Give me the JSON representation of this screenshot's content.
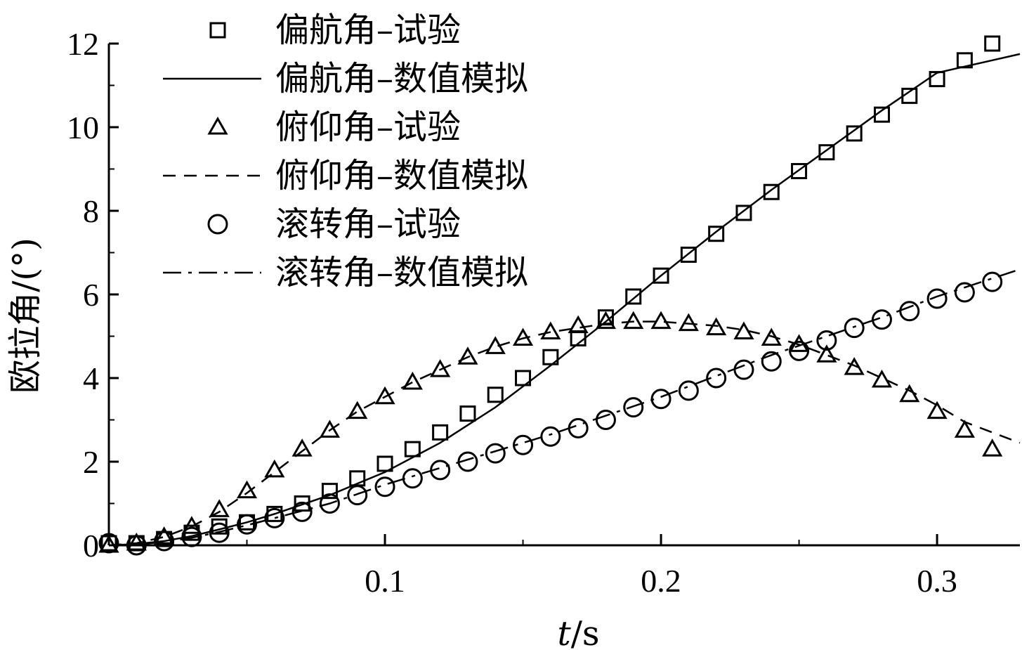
{
  "chart_data": {
    "type": "line",
    "title": "",
    "xlabel_var": "t",
    "xlabel_unit": "/s",
    "ylabel": "欧拉角/(°)",
    "xlim": [
      0,
      0.33
    ],
    "ylim": [
      0,
      12
    ],
    "x_ticks": [
      0.1,
      0.2,
      0.3
    ],
    "x_tick_labels": [
      "0.1",
      "0.2",
      "0.3"
    ],
    "y_ticks": [
      0,
      2,
      4,
      6,
      8,
      10,
      12
    ],
    "y_tick_labels": [
      "0",
      "2",
      "4",
      "6",
      "8",
      "10",
      "12"
    ],
    "grid": false,
    "legend_position": "top-left",
    "legend": [
      {
        "label": "偏航角–试验",
        "marker": "square",
        "line": "none"
      },
      {
        "label": "偏航角–数值模拟",
        "marker": "none",
        "line": "solid"
      },
      {
        "label": "俯仰角–试验",
        "marker": "triangle",
        "line": "none"
      },
      {
        "label": "俯仰角–数值模拟",
        "marker": "none",
        "line": "dashed"
      },
      {
        "label": "滚转角–试验",
        "marker": "circle",
        "line": "none"
      },
      {
        "label": "滚转角–数值模拟",
        "marker": "none",
        "line": "dashdot"
      }
    ],
    "series": [
      {
        "name": "偏航角–试验",
        "style": "markers",
        "marker": "square",
        "x": [
          0.0,
          0.01,
          0.02,
          0.03,
          0.04,
          0.05,
          0.06,
          0.07,
          0.08,
          0.09,
          0.1,
          0.11,
          0.12,
          0.13,
          0.14,
          0.15,
          0.16,
          0.17,
          0.18,
          0.19,
          0.2,
          0.21,
          0.22,
          0.23,
          0.24,
          0.25,
          0.26,
          0.27,
          0.28,
          0.29,
          0.3,
          0.31,
          0.32
        ],
        "y": [
          0.05,
          0.05,
          0.15,
          0.3,
          0.45,
          0.55,
          0.75,
          1.0,
          1.3,
          1.6,
          1.95,
          2.3,
          2.7,
          3.15,
          3.6,
          4.0,
          4.5,
          4.95,
          5.45,
          5.95,
          6.45,
          6.95,
          7.45,
          7.95,
          8.45,
          8.95,
          9.4,
          9.85,
          10.3,
          10.75,
          11.15,
          11.6,
          12.0
        ]
      },
      {
        "name": "偏航角–数值模拟",
        "style": "solid",
        "x": [
          0.0,
          0.01,
          0.02,
          0.03,
          0.04,
          0.05,
          0.06,
          0.08,
          0.1,
          0.12,
          0.14,
          0.16,
          0.18,
          0.2,
          0.22,
          0.24,
          0.26,
          0.28,
          0.3,
          0.33
        ],
        "y": [
          0.0,
          0.03,
          0.1,
          0.22,
          0.38,
          0.55,
          0.75,
          1.2,
          1.75,
          2.45,
          3.3,
          4.3,
          5.35,
          6.45,
          7.5,
          8.5,
          9.45,
          10.4,
          11.3,
          11.75
        ]
      },
      {
        "name": "俯仰角–试验",
        "style": "markers",
        "marker": "triangle",
        "x": [
          0.0,
          0.01,
          0.02,
          0.03,
          0.04,
          0.05,
          0.06,
          0.07,
          0.08,
          0.09,
          0.1,
          0.11,
          0.12,
          0.13,
          0.14,
          0.15,
          0.16,
          0.17,
          0.18,
          0.19,
          0.2,
          0.21,
          0.22,
          0.23,
          0.24,
          0.25,
          0.26,
          0.27,
          0.28,
          0.29,
          0.3,
          0.31,
          0.32
        ],
        "y": [
          0.0,
          0.05,
          0.2,
          0.45,
          0.85,
          1.3,
          1.8,
          2.3,
          2.75,
          3.2,
          3.55,
          3.9,
          4.2,
          4.5,
          4.75,
          4.95,
          5.1,
          5.25,
          5.35,
          5.35,
          5.35,
          5.3,
          5.2,
          5.1,
          4.95,
          4.8,
          4.55,
          4.25,
          3.95,
          3.6,
          3.2,
          2.75,
          2.3
        ]
      },
      {
        "name": "俯仰角–数值模拟",
        "style": "dashed",
        "x": [
          0.0,
          0.01,
          0.02,
          0.03,
          0.04,
          0.05,
          0.06,
          0.07,
          0.08,
          0.09,
          0.1,
          0.11,
          0.12,
          0.13,
          0.14,
          0.15,
          0.16,
          0.17,
          0.18,
          0.19,
          0.2,
          0.21,
          0.22,
          0.23,
          0.24,
          0.25,
          0.26,
          0.27,
          0.28,
          0.29,
          0.3,
          0.31,
          0.33
        ],
        "y": [
          0.0,
          0.05,
          0.2,
          0.45,
          0.8,
          1.25,
          1.75,
          2.25,
          2.75,
          3.2,
          3.55,
          3.9,
          4.2,
          4.5,
          4.75,
          4.95,
          5.1,
          5.2,
          5.3,
          5.35,
          5.35,
          5.3,
          5.25,
          5.15,
          5.0,
          4.8,
          4.55,
          4.3,
          4.0,
          3.7,
          3.35,
          2.95,
          2.45
        ]
      },
      {
        "name": "滚转角–试验",
        "style": "markers",
        "marker": "circle",
        "x": [
          0.0,
          0.01,
          0.02,
          0.03,
          0.04,
          0.05,
          0.06,
          0.07,
          0.08,
          0.09,
          0.1,
          0.11,
          0.12,
          0.13,
          0.14,
          0.15,
          0.16,
          0.17,
          0.18,
          0.19,
          0.2,
          0.21,
          0.22,
          0.23,
          0.24,
          0.25,
          0.26,
          0.27,
          0.28,
          0.29,
          0.3,
          0.31,
          0.32
        ],
        "y": [
          0.05,
          0.0,
          0.1,
          0.2,
          0.3,
          0.5,
          0.65,
          0.8,
          1.0,
          1.2,
          1.4,
          1.6,
          1.8,
          2.0,
          2.2,
          2.4,
          2.6,
          2.8,
          3.0,
          3.3,
          3.5,
          3.7,
          4.0,
          4.2,
          4.4,
          4.65,
          4.9,
          5.2,
          5.4,
          5.6,
          5.9,
          6.05,
          6.3
        ]
      },
      {
        "name": "滚转角–数值模拟",
        "style": "dashdot",
        "x": [
          0.0,
          0.01,
          0.02,
          0.03,
          0.04,
          0.05,
          0.06,
          0.08,
          0.1,
          0.12,
          0.14,
          0.16,
          0.18,
          0.2,
          0.22,
          0.24,
          0.26,
          0.28,
          0.3,
          0.33
        ],
        "y": [
          0.0,
          0.02,
          0.08,
          0.18,
          0.32,
          0.48,
          0.65,
          1.0,
          1.45,
          1.85,
          2.25,
          2.65,
          3.1,
          3.55,
          4.05,
          4.55,
          5.0,
          5.45,
          5.95,
          6.6
        ]
      }
    ]
  }
}
